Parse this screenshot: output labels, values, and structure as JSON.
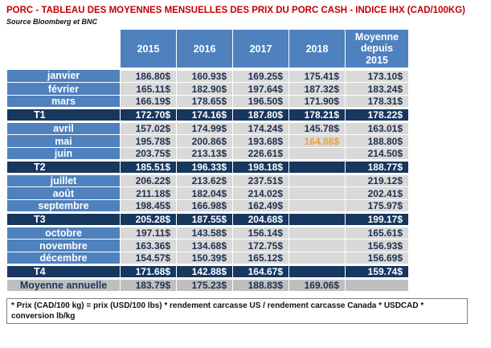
{
  "title": "PORC - TABLEAU DES MOYENNES MENSUELLES DES PRIX DU PORC CASH - INDICE IHX (CAD/100KG)",
  "source": "Source Bloomberg et BNC",
  "footnote": "* Prix (CAD/100 kg) = prix (USD/100 lbs) * rendement carcasse US / rendement carcasse Canada * USDCAD * conversion lb/kg",
  "colors": {
    "title_red": "#C00000",
    "header_blue": "#4E81BD",
    "quarter_navy": "#17375E",
    "cell_gray": "#D9D9D9",
    "annual_gray": "#BFBFBF",
    "value_text": "#1F3050",
    "highlight_orange": "#E9A23B"
  },
  "chart_data": {
    "type": "table",
    "title": "PORC - TABLEAU DES MOYENNES MENSUELLES DES PRIX DU PORC CASH - INDICE IHX (CAD/100KG)",
    "columns": [
      "2015",
      "2016",
      "2017",
      "2018",
      "Moyenne depuis 2015"
    ],
    "rows": [
      {
        "label": "janvier",
        "kind": "month",
        "values": [
          "186.80$",
          "160.93$",
          "169.25$",
          "175.41$",
          "173.10$"
        ]
      },
      {
        "label": "février",
        "kind": "month",
        "values": [
          "165.11$",
          "182.90$",
          "197.64$",
          "187.32$",
          "183.24$"
        ]
      },
      {
        "label": "mars",
        "kind": "month",
        "values": [
          "166.19$",
          "178.65$",
          "196.50$",
          "171.90$",
          "178.31$"
        ]
      },
      {
        "label": "T1",
        "kind": "quarter",
        "values": [
          "172.70$",
          "174.16$",
          "187.80$",
          "178.21$",
          "178.22$"
        ]
      },
      {
        "label": "avril",
        "kind": "month",
        "values": [
          "157.02$",
          "174.99$",
          "174.24$",
          "145.78$",
          "163.01$"
        ]
      },
      {
        "label": "mai",
        "kind": "month",
        "values": [
          "195.78$",
          "200.86$",
          "193.68$",
          "164.88$",
          "188.80$"
        ],
        "highlight_col": 3
      },
      {
        "label": "juin",
        "kind": "month",
        "values": [
          "203.75$",
          "213.13$",
          "226.61$",
          "",
          "214.50$"
        ]
      },
      {
        "label": "T2",
        "kind": "quarter",
        "values": [
          "185.51$",
          "196.33$",
          "198.18$",
          "",
          "188.77$"
        ]
      },
      {
        "label": "juillet",
        "kind": "month",
        "values": [
          "206.22$",
          "213.62$",
          "237.51$",
          "",
          "219.12$"
        ]
      },
      {
        "label": "août",
        "kind": "month",
        "values": [
          "211.18$",
          "182.04$",
          "214.02$",
          "",
          "202.41$"
        ]
      },
      {
        "label": "septembre",
        "kind": "month",
        "values": [
          "198.45$",
          "166.98$",
          "162.49$",
          "",
          "175.97$"
        ]
      },
      {
        "label": "T3",
        "kind": "quarter",
        "values": [
          "205.28$",
          "187.55$",
          "204.68$",
          "",
          "199.17$"
        ]
      },
      {
        "label": "octobre",
        "kind": "month",
        "values": [
          "197.11$",
          "143.58$",
          "156.14$",
          "",
          "165.61$"
        ]
      },
      {
        "label": "novembre",
        "kind": "month",
        "values": [
          "163.36$",
          "134.68$",
          "172.75$",
          "",
          "156.93$"
        ]
      },
      {
        "label": "décembre",
        "kind": "month",
        "values": [
          "154.57$",
          "150.39$",
          "165.12$",
          "",
          "156.69$"
        ]
      },
      {
        "label": "T4",
        "kind": "quarter",
        "values": [
          "171.68$",
          "142.88$",
          "164.67$",
          "",
          "159.74$"
        ]
      },
      {
        "label": "Moyenne annuelle",
        "kind": "annual",
        "values": [
          "183.79$",
          "175.23$",
          "188.83$",
          "169.06$",
          ""
        ]
      }
    ]
  }
}
